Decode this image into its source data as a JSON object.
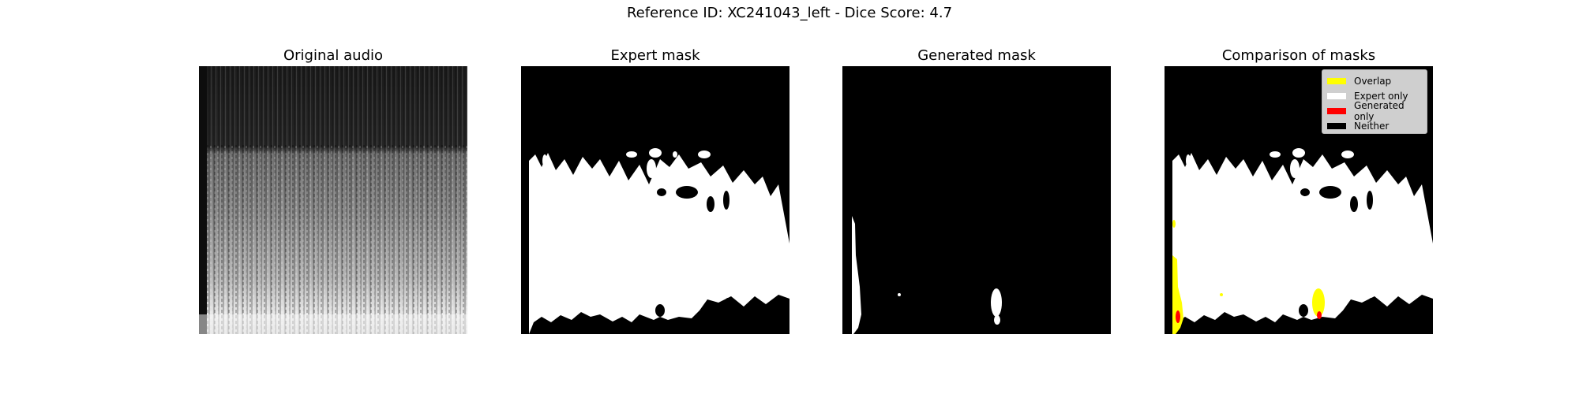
{
  "figure": {
    "suptitle": "Reference ID: XC241043_left - Dice Score: 4.7"
  },
  "panels": [
    {
      "title": "Original audio"
    },
    {
      "title": "Expert mask"
    },
    {
      "title": "Generated mask"
    },
    {
      "title": "Comparison of masks"
    }
  ],
  "legend": {
    "items": [
      {
        "label": "Overlap",
        "color": "#ffff00"
      },
      {
        "label": "Expert only",
        "color": "#ffffff"
      },
      {
        "label": "Generated only",
        "color": "#ff0000"
      },
      {
        "label": "Neither",
        "color": "#000000"
      }
    ]
  },
  "colors": {
    "background": "#000000",
    "expert": "#ffffff",
    "overlap": "#ffff00",
    "generated_only": "#ff0000"
  }
}
